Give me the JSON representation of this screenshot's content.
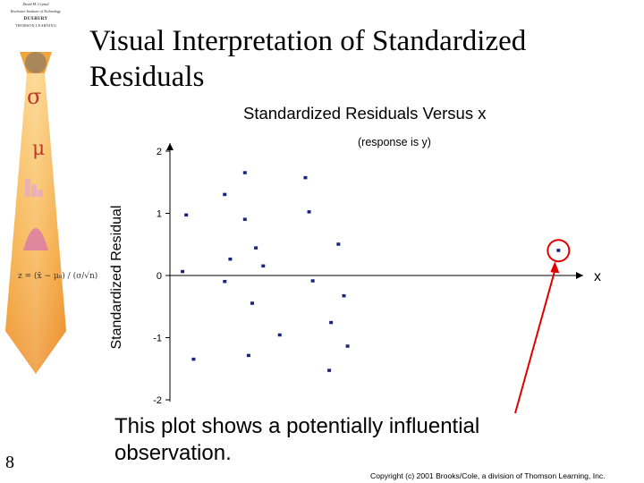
{
  "slide": {
    "title": "Visual Interpretation of Standardized Residuals",
    "number": "8",
    "caption": "This plot shows a potentially influential observation.",
    "copyright": "Copyright (c) 2001 Brooks/Cole, a division of Thomson Learning, Inc."
  },
  "branding": {
    "line1": "David M. Crystal",
    "line2": "Rochester Institute of Technology",
    "line3": "DUXBURY",
    "line4": "THOMSON LEARNING",
    "symbol_sigma": "σ",
    "symbol_mu": "μ",
    "formula": "z = (x̄ − μ₀) / (σ/√n)"
  },
  "chart_data": {
    "type": "scatter",
    "title": "Standardized Residuals Versus x",
    "subtitle": "(response is y)",
    "xlabel": "x",
    "ylabel": "Standardized Residual",
    "ylim": [
      -2,
      2
    ],
    "yticks": [
      2,
      1,
      0,
      -1,
      -2
    ],
    "grid": false,
    "highlight": "circled point at far right, pointed to by an arrow from the caption",
    "points": [
      {
        "x": 0.02,
        "y": 0.06
      },
      {
        "x": 0.04,
        "y": 0.97
      },
      {
        "x": 0.08,
        "y": -1.35
      },
      {
        "x": 0.25,
        "y": -0.1
      },
      {
        "x": 0.25,
        "y": 1.3
      },
      {
        "x": 0.28,
        "y": 0.26
      },
      {
        "x": 0.36,
        "y": 1.65
      },
      {
        "x": 0.36,
        "y": 0.9
      },
      {
        "x": 0.38,
        "y": -1.29
      },
      {
        "x": 0.4,
        "y": -0.45
      },
      {
        "x": 0.42,
        "y": 0.44
      },
      {
        "x": 0.46,
        "y": 0.15
      },
      {
        "x": 0.55,
        "y": -0.96
      },
      {
        "x": 0.69,
        "y": 1.57
      },
      {
        "x": 0.71,
        "y": 1.02
      },
      {
        "x": 0.73,
        "y": -0.09
      },
      {
        "x": 0.82,
        "y": -1.53
      },
      {
        "x": 0.83,
        "y": -0.76
      },
      {
        "x": 0.87,
        "y": 0.5
      },
      {
        "x": 0.9,
        "y": -0.33
      },
      {
        "x": 0.92,
        "y": -1.14
      },
      {
        "x": 2.07,
        "y": 0.4
      }
    ],
    "influential_point_index": 21
  }
}
